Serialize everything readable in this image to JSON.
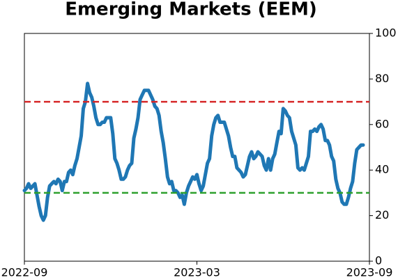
{
  "chart_data": {
    "type": "line",
    "title": "Emerging Markets (EEM)",
    "xlim": [
      "2022-09",
      "2023-09"
    ],
    "xticks": [
      "2022-09",
      "2023-03",
      "2023-09"
    ],
    "ylim": [
      0,
      100
    ],
    "yticks": [
      0,
      20,
      40,
      60,
      80,
      100
    ],
    "reference_lines": [
      {
        "value": 70,
        "color": "#d62728"
      },
      {
        "value": 30,
        "color": "#2ca02c"
      }
    ],
    "series": [
      {
        "color": "#1f77b4",
        "values": [
          31,
          32,
          34,
          32,
          33,
          34,
          29,
          24,
          20,
          18,
          20,
          28,
          33,
          34,
          35,
          34,
          36,
          35,
          31,
          35,
          35,
          39,
          40,
          38,
          42,
          45,
          50,
          55,
          67,
          70,
          78,
          74,
          72,
          68,
          63,
          60,
          60,
          61,
          61,
          63,
          63,
          63,
          56,
          45,
          43,
          40,
          36,
          36,
          37,
          40,
          42,
          43,
          54,
          58,
          63,
          71,
          73,
          75,
          75,
          75,
          73,
          71,
          68,
          67,
          64,
          57,
          52,
          45,
          37,
          34,
          35,
          31,
          31,
          30,
          28,
          29,
          25,
          30,
          33,
          35,
          37,
          36,
          38,
          34,
          31,
          33,
          38,
          43,
          45,
          55,
          60,
          63,
          64,
          61,
          61,
          61,
          58,
          55,
          50,
          46,
          46,
          41,
          40,
          39,
          37,
          38,
          42,
          46,
          48,
          45,
          46,
          48,
          47,
          46,
          42,
          40,
          45,
          40,
          45,
          47,
          52,
          57,
          56,
          67,
          66,
          64,
          63,
          57,
          54,
          51,
          41,
          40,
          41,
          40,
          43,
          46,
          57,
          57,
          58,
          57,
          59,
          60,
          58,
          53,
          53,
          51,
          46,
          44,
          36,
          32,
          30,
          26,
          25,
          25,
          28,
          32,
          35,
          43,
          49,
          50,
          51,
          51
        ]
      }
    ]
  }
}
